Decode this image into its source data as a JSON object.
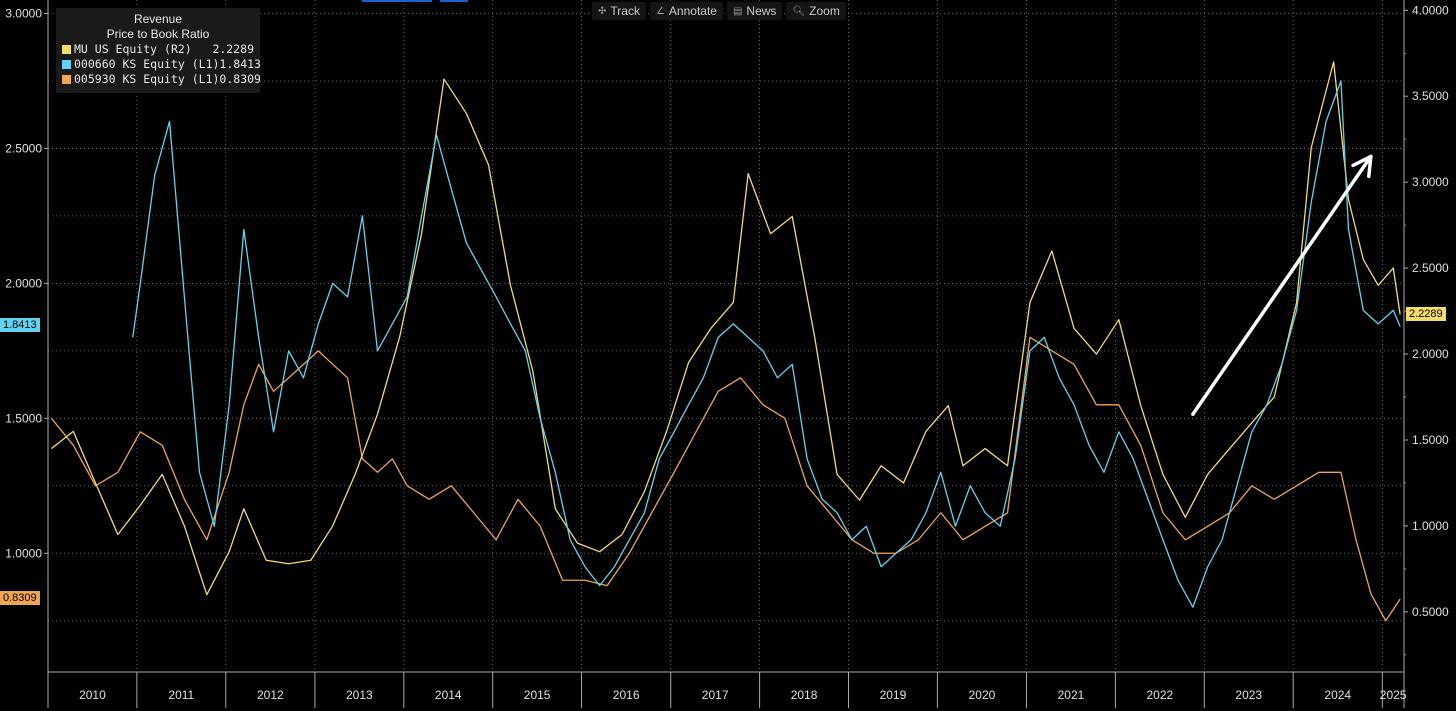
{
  "toolbar": {
    "items": [
      {
        "label": "Track",
        "icon": "crosshair-icon"
      },
      {
        "label": "Annotate",
        "icon": "pencil-icon"
      },
      {
        "label": "News",
        "icon": "news-icon"
      },
      {
        "label": "Zoom",
        "icon": "magnifier-icon"
      }
    ]
  },
  "colors": {
    "background": "#000000",
    "grid": "#7a7a7a",
    "mu": "#f3dc6a",
    "hynix": "#5fd4f0",
    "samsung": "#f0a550",
    "arrow": "#ffffff"
  },
  "chart_data": {
    "type": "line",
    "title": "Revenue",
    "subtitle": "Price to Book Ratio",
    "x_range": [
      "2010-01-01",
      "2025-03-31"
    ],
    "x_tick_labels": [
      "2010",
      "2011",
      "2012",
      "2013",
      "2014",
      "2015",
      "2016",
      "2017",
      "2018",
      "2019",
      "2020",
      "2021",
      "2022",
      "2023",
      "2024",
      "2025"
    ],
    "y_left": {
      "ticks": [
        "1.0000",
        "1.5000",
        "2.0000",
        "2.5000",
        "3.0000"
      ],
      "range": [
        0.56,
        3.05
      ]
    },
    "y_right": {
      "ticks": [
        "0.5000",
        "1.0000",
        "1.5000",
        "2.0000",
        "2.5000",
        "3.0000",
        "3.5000",
        "4.0000"
      ],
      "range": [
        0.15,
        4.06
      ]
    },
    "grid": true,
    "legend_position": "top-left",
    "series": [
      {
        "name": "MU US Equity",
        "axis_label": "(R2)",
        "axis": "right",
        "last": "2.2289",
        "points": [
          [
            "2010-01",
            1.45
          ],
          [
            "2010-04",
            1.55
          ],
          [
            "2010-07",
            1.25
          ],
          [
            "2010-10",
            0.95
          ],
          [
            "2011-01",
            1.12
          ],
          [
            "2011-04",
            1.3
          ],
          [
            "2011-07",
            1.0
          ],
          [
            "2011-10",
            0.6
          ],
          [
            "2012-01",
            0.85
          ],
          [
            "2012-03",
            1.1
          ],
          [
            "2012-06",
            0.8
          ],
          [
            "2012-09",
            0.78
          ],
          [
            "2012-12",
            0.8
          ],
          [
            "2013-03",
            1.0
          ],
          [
            "2013-06",
            1.3
          ],
          [
            "2013-09",
            1.65
          ],
          [
            "2013-12",
            2.1
          ],
          [
            "2014-03",
            2.7
          ],
          [
            "2014-06",
            3.6
          ],
          [
            "2014-09",
            3.4
          ],
          [
            "2014-12",
            3.1
          ],
          [
            "2015-03",
            2.4
          ],
          [
            "2015-06",
            1.9
          ],
          [
            "2015-09",
            1.1
          ],
          [
            "2015-12",
            0.9
          ],
          [
            "2016-03",
            0.85
          ],
          [
            "2016-06",
            0.95
          ],
          [
            "2016-09",
            1.2
          ],
          [
            "2016-12",
            1.55
          ],
          [
            "2017-03",
            1.95
          ],
          [
            "2017-06",
            2.15
          ],
          [
            "2017-09",
            2.3
          ],
          [
            "2017-11",
            3.05
          ],
          [
            "2018-02",
            2.7
          ],
          [
            "2018-05",
            2.8
          ],
          [
            "2018-08",
            2.1
          ],
          [
            "2018-11",
            1.3
          ],
          [
            "2019-02",
            1.15
          ],
          [
            "2019-05",
            1.35
          ],
          [
            "2019-08",
            1.25
          ],
          [
            "2019-11",
            1.55
          ],
          [
            "2020-02",
            1.7
          ],
          [
            "2020-04",
            1.35
          ],
          [
            "2020-07",
            1.45
          ],
          [
            "2020-10",
            1.35
          ],
          [
            "2021-01",
            2.3
          ],
          [
            "2021-04",
            2.6
          ],
          [
            "2021-07",
            2.15
          ],
          [
            "2021-10",
            2.0
          ],
          [
            "2022-01",
            2.2
          ],
          [
            "2022-04",
            1.7
          ],
          [
            "2022-07",
            1.3
          ],
          [
            "2022-10",
            1.05
          ],
          [
            "2023-01",
            1.3
          ],
          [
            "2023-04",
            1.45
          ],
          [
            "2023-07",
            1.6
          ],
          [
            "2023-10",
            1.75
          ],
          [
            "2024-01",
            2.3
          ],
          [
            "2024-03",
            3.2
          ],
          [
            "2024-06",
            3.7
          ],
          [
            "2024-08",
            2.9
          ],
          [
            "2024-10",
            2.55
          ],
          [
            "2024-12",
            2.4
          ],
          [
            "2025-02",
            2.5
          ],
          [
            "2025-03",
            2.23
          ]
        ]
      },
      {
        "name": "000660 KS Equity",
        "axis_label": "(L1)",
        "axis": "left",
        "last": "1.8413",
        "points": [
          [
            "2010-12",
            1.8
          ],
          [
            "2011-01",
            2.0
          ],
          [
            "2011-03",
            2.4
          ],
          [
            "2011-05",
            2.6
          ],
          [
            "2011-07",
            1.95
          ],
          [
            "2011-09",
            1.3
          ],
          [
            "2011-11",
            1.1
          ],
          [
            "2012-01",
            1.55
          ],
          [
            "2012-03",
            2.2
          ],
          [
            "2012-05",
            1.8
          ],
          [
            "2012-07",
            1.45
          ],
          [
            "2012-09",
            1.75
          ],
          [
            "2012-11",
            1.65
          ],
          [
            "2013-01",
            1.85
          ],
          [
            "2013-03",
            2.0
          ],
          [
            "2013-05",
            1.95
          ],
          [
            "2013-07",
            2.25
          ],
          [
            "2013-09",
            1.75
          ],
          [
            "2013-11",
            1.85
          ],
          [
            "2014-01",
            1.95
          ],
          [
            "2014-03",
            2.25
          ],
          [
            "2014-05",
            2.55
          ],
          [
            "2014-07",
            2.35
          ],
          [
            "2014-09",
            2.15
          ],
          [
            "2014-11",
            2.05
          ],
          [
            "2015-01",
            1.95
          ],
          [
            "2015-03",
            1.85
          ],
          [
            "2015-05",
            1.75
          ],
          [
            "2015-07",
            1.5
          ],
          [
            "2015-09",
            1.3
          ],
          [
            "2015-11",
            1.05
          ],
          [
            "2016-01",
            0.95
          ],
          [
            "2016-03",
            0.88
          ],
          [
            "2016-05",
            0.95
          ],
          [
            "2016-07",
            1.05
          ],
          [
            "2016-09",
            1.15
          ],
          [
            "2016-11",
            1.35
          ],
          [
            "2017-01",
            1.45
          ],
          [
            "2017-03",
            1.55
          ],
          [
            "2017-05",
            1.65
          ],
          [
            "2017-07",
            1.8
          ],
          [
            "2017-09",
            1.85
          ],
          [
            "2017-11",
            1.8
          ],
          [
            "2018-01",
            1.75
          ],
          [
            "2018-03",
            1.65
          ],
          [
            "2018-05",
            1.7
          ],
          [
            "2018-07",
            1.35
          ],
          [
            "2018-09",
            1.2
          ],
          [
            "2018-11",
            1.15
          ],
          [
            "2019-01",
            1.05
          ],
          [
            "2019-03",
            1.1
          ],
          [
            "2019-05",
            0.95
          ],
          [
            "2019-07",
            1.0
          ],
          [
            "2019-09",
            1.05
          ],
          [
            "2019-11",
            1.15
          ],
          [
            "2020-01",
            1.3
          ],
          [
            "2020-03",
            1.1
          ],
          [
            "2020-05",
            1.25
          ],
          [
            "2020-07",
            1.15
          ],
          [
            "2020-09",
            1.1
          ],
          [
            "2020-11",
            1.35
          ],
          [
            "2021-01",
            1.75
          ],
          [
            "2021-03",
            1.8
          ],
          [
            "2021-05",
            1.65
          ],
          [
            "2021-07",
            1.55
          ],
          [
            "2021-09",
            1.4
          ],
          [
            "2021-11",
            1.3
          ],
          [
            "2022-01",
            1.45
          ],
          [
            "2022-03",
            1.35
          ],
          [
            "2022-05",
            1.2
          ],
          [
            "2022-07",
            1.05
          ],
          [
            "2022-09",
            0.9
          ],
          [
            "2022-11",
            0.8
          ],
          [
            "2023-01",
            0.95
          ],
          [
            "2023-03",
            1.05
          ],
          [
            "2023-05",
            1.25
          ],
          [
            "2023-07",
            1.45
          ],
          [
            "2023-09",
            1.55
          ],
          [
            "2023-11",
            1.7
          ],
          [
            "2024-01",
            1.9
          ],
          [
            "2024-03",
            2.3
          ],
          [
            "2024-05",
            2.6
          ],
          [
            "2024-07",
            2.75
          ],
          [
            "2024-08",
            2.2
          ],
          [
            "2024-10",
            1.9
          ],
          [
            "2024-12",
            1.85
          ],
          [
            "2025-02",
            1.9
          ],
          [
            "2025-03",
            1.84
          ]
        ]
      },
      {
        "name": "005930 KS Equity",
        "axis_label": "(L1)",
        "axis": "left",
        "last": "0.8309",
        "points": [
          [
            "2010-01",
            1.5
          ],
          [
            "2010-04",
            1.4
          ],
          [
            "2010-07",
            1.25
          ],
          [
            "2010-10",
            1.3
          ],
          [
            "2011-01",
            1.45
          ],
          [
            "2011-04",
            1.4
          ],
          [
            "2011-07",
            1.2
          ],
          [
            "2011-10",
            1.05
          ],
          [
            "2012-01",
            1.3
          ],
          [
            "2012-03",
            1.55
          ],
          [
            "2012-05",
            1.7
          ],
          [
            "2012-07",
            1.6
          ],
          [
            "2012-09",
            1.65
          ],
          [
            "2012-11",
            1.7
          ],
          [
            "2013-01",
            1.75
          ],
          [
            "2013-03",
            1.7
          ],
          [
            "2013-05",
            1.65
          ],
          [
            "2013-07",
            1.35
          ],
          [
            "2013-09",
            1.3
          ],
          [
            "2013-11",
            1.35
          ],
          [
            "2014-01",
            1.25
          ],
          [
            "2014-04",
            1.2
          ],
          [
            "2014-07",
            1.25
          ],
          [
            "2014-10",
            1.15
          ],
          [
            "2015-01",
            1.05
          ],
          [
            "2015-04",
            1.2
          ],
          [
            "2015-07",
            1.1
          ],
          [
            "2015-10",
            0.9
          ],
          [
            "2016-01",
            0.9
          ],
          [
            "2016-04",
            0.88
          ],
          [
            "2016-07",
            1.0
          ],
          [
            "2016-10",
            1.15
          ],
          [
            "2017-01",
            1.3
          ],
          [
            "2017-04",
            1.45
          ],
          [
            "2017-07",
            1.6
          ],
          [
            "2017-10",
            1.65
          ],
          [
            "2018-01",
            1.55
          ],
          [
            "2018-04",
            1.5
          ],
          [
            "2018-07",
            1.25
          ],
          [
            "2018-10",
            1.15
          ],
          [
            "2019-01",
            1.05
          ],
          [
            "2019-04",
            1.0
          ],
          [
            "2019-07",
            1.0
          ],
          [
            "2019-10",
            1.05
          ],
          [
            "2020-01",
            1.15
          ],
          [
            "2020-04",
            1.05
          ],
          [
            "2020-07",
            1.1
          ],
          [
            "2020-10",
            1.15
          ],
          [
            "2021-01",
            1.8
          ],
          [
            "2021-04",
            1.75
          ],
          [
            "2021-07",
            1.7
          ],
          [
            "2021-10",
            1.55
          ],
          [
            "2022-01",
            1.55
          ],
          [
            "2022-04",
            1.4
          ],
          [
            "2022-07",
            1.15
          ],
          [
            "2022-10",
            1.05
          ],
          [
            "2023-01",
            1.1
          ],
          [
            "2023-04",
            1.15
          ],
          [
            "2023-07",
            1.25
          ],
          [
            "2023-10",
            1.2
          ],
          [
            "2024-01",
            1.25
          ],
          [
            "2024-04",
            1.3
          ],
          [
            "2024-07",
            1.3
          ],
          [
            "2024-09",
            1.05
          ],
          [
            "2024-11",
            0.85
          ],
          [
            "2025-01",
            0.75
          ],
          [
            "2025-03",
            0.83
          ]
        ]
      }
    ],
    "annotations": [
      {
        "type": "arrow",
        "from": [
          "2022-11",
          1.65
        ],
        "to": [
          "2024-11",
          3.15
        ],
        "axis": "right"
      }
    ]
  }
}
